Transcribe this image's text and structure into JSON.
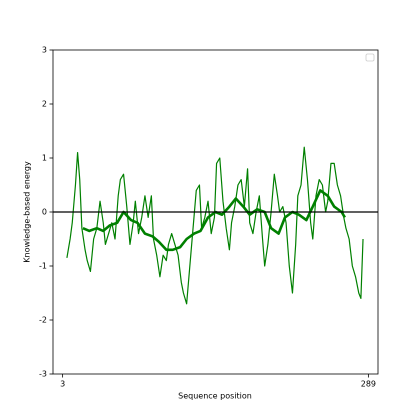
{
  "chart_data": {
    "type": "line",
    "xlabel": "Sequence position",
    "ylabel": "Knowledge-based energy",
    "xlim": [
      -6,
      298
    ],
    "xticks": [
      3,
      289
    ],
    "ylim": [
      -3,
      3
    ],
    "yticks": [
      -3,
      -2,
      -1,
      0,
      1,
      2,
      3
    ],
    "hline": 0,
    "hline_color": "#000000",
    "legend": "upper right",
    "series": [
      {
        "color": "#008000",
        "width": 1.2,
        "x": [
          7,
          10,
          12,
          15,
          17,
          19,
          21,
          24,
          26,
          29,
          32,
          35,
          38,
          41,
          43,
          46,
          49,
          52,
          55,
          57,
          60,
          63,
          66,
          69,
          71,
          74,
          77,
          80,
          83,
          86,
          88,
          91,
          94,
          97,
          100,
          102,
          105,
          108,
          111,
          114,
          116,
          119,
          122,
          125,
          128,
          131,
          133,
          136,
          139,
          142,
          145,
          147,
          150,
          153,
          156,
          159,
          161,
          164,
          167,
          170,
          173,
          176,
          178,
          181,
          184,
          187,
          190,
          192,
          195,
          198,
          201,
          204,
          206,
          209,
          212,
          215,
          218,
          221,
          223,
          226,
          229,
          232,
          235,
          237,
          240,
          243,
          246,
          249,
          251,
          254,
          257,
          260,
          263,
          266,
          268,
          271,
          274,
          277,
          280,
          282,
          284
        ],
        "values": [
          -0.85,
          -0.5,
          -0.2,
          0.5,
          1.1,
          0.6,
          -0.3,
          -0.7,
          -0.9,
          -1.1,
          -0.5,
          -0.3,
          0.2,
          -0.2,
          -0.6,
          -0.4,
          -0.2,
          -0.5,
          0.3,
          0.6,
          0.7,
          0.1,
          -0.6,
          -0.2,
          0.2,
          -0.4,
          -0.1,
          0.3,
          -0.1,
          0.3,
          -0.5,
          -0.8,
          -1.2,
          -0.8,
          -0.9,
          -0.6,
          -0.4,
          -0.6,
          -0.8,
          -1.3,
          -1.5,
          -1.7,
          -1.0,
          -0.3,
          0.4,
          0.5,
          -0.3,
          -0.1,
          0.2,
          -0.4,
          -0.1,
          0.9,
          1.0,
          0.2,
          -0.3,
          -0.7,
          -0.2,
          0.1,
          0.5,
          0.6,
          0.1,
          0.8,
          -0.2,
          -0.4,
          0.0,
          0.3,
          -0.5,
          -1.0,
          -0.6,
          0.0,
          0.7,
          0.3,
          0.0,
          0.1,
          -0.2,
          -1.0,
          -1.5,
          -0.6,
          0.3,
          0.5,
          1.2,
          0.6,
          -0.2,
          -0.5,
          0.3,
          0.6,
          0.5,
          0.0,
          0.2,
          0.9,
          0.9,
          0.5,
          0.3,
          -0.1,
          -0.3,
          -0.5,
          -1.0,
          -1.2,
          -1.5,
          -1.6,
          -0.5
        ]
      },
      {
        "color": "#008000",
        "width": 2.6,
        "x": [
          22,
          28,
          35,
          41,
          47,
          54,
          60,
          67,
          73,
          80,
          87,
          93,
          100,
          106,
          113,
          119,
          126,
          132,
          139,
          146,
          152,
          159,
          165,
          172,
          178,
          185,
          192,
          198,
          205,
          211,
          218,
          224,
          231,
          237,
          244,
          251,
          257,
          264,
          267
        ],
        "values": [
          -0.3,
          -0.35,
          -0.3,
          -0.35,
          -0.25,
          -0.2,
          0.0,
          -0.15,
          -0.2,
          -0.4,
          -0.45,
          -0.55,
          -0.7,
          -0.7,
          -0.65,
          -0.5,
          -0.4,
          -0.35,
          -0.1,
          0.0,
          -0.05,
          0.1,
          0.25,
          0.1,
          -0.05,
          0.05,
          0.0,
          -0.3,
          -0.4,
          -0.1,
          0.0,
          -0.05,
          -0.15,
          0.1,
          0.4,
          0.3,
          0.1,
          0.0,
          -0.1
        ]
      }
    ]
  }
}
